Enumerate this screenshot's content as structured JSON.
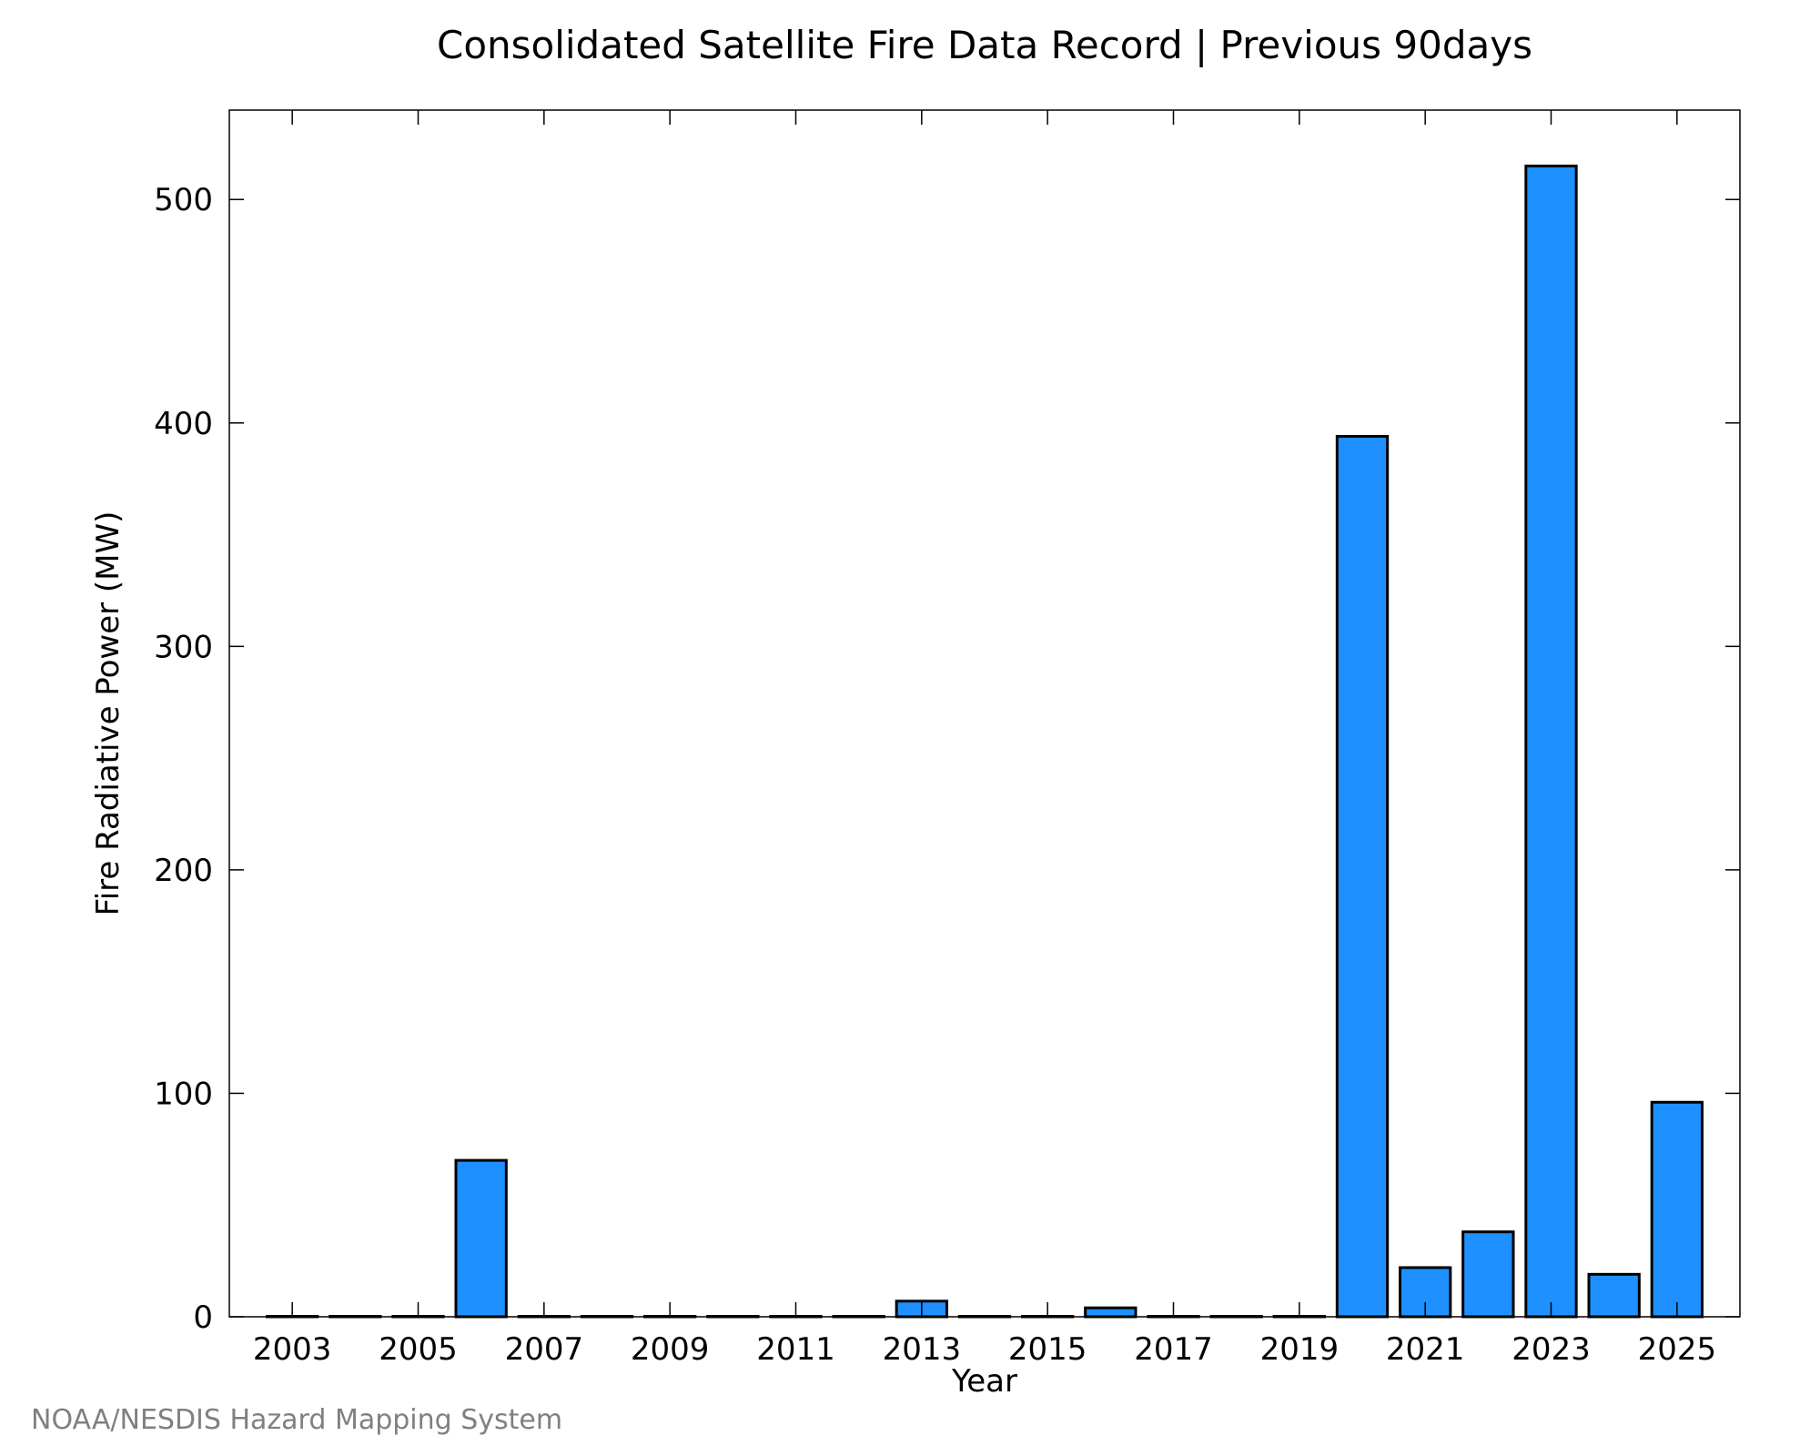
{
  "chart_data": {
    "type": "bar",
    "title": "Consolidated Satellite Fire Data Record | Previous 90days",
    "xlabel": "Year",
    "ylabel": "Fire Radiative Power (MW)",
    "categories": [
      2003,
      2004,
      2005,
      2006,
      2007,
      2008,
      2009,
      2010,
      2011,
      2012,
      2013,
      2014,
      2015,
      2016,
      2017,
      2018,
      2019,
      2020,
      2021,
      2022,
      2023,
      2024,
      2025
    ],
    "values": [
      0,
      0,
      0,
      70,
      0,
      0,
      0,
      0,
      0,
      0,
      7,
      0,
      0,
      4,
      0,
      0,
      0,
      394,
      22,
      38,
      515,
      19,
      96
    ],
    "x_ticks": [
      2003,
      2005,
      2007,
      2009,
      2011,
      2013,
      2015,
      2017,
      2019,
      2021,
      2023,
      2025
    ],
    "y_ticks": [
      0,
      100,
      200,
      300,
      400,
      500
    ],
    "xlim": [
      2002.0,
      2026.0
    ],
    "ylim": [
      0,
      540
    ],
    "grid": false,
    "legend": "none",
    "bar_color": "#1E90FF",
    "edge_color": "#000000"
  },
  "credit": "NOAA/NESDIS Hazard Mapping System"
}
